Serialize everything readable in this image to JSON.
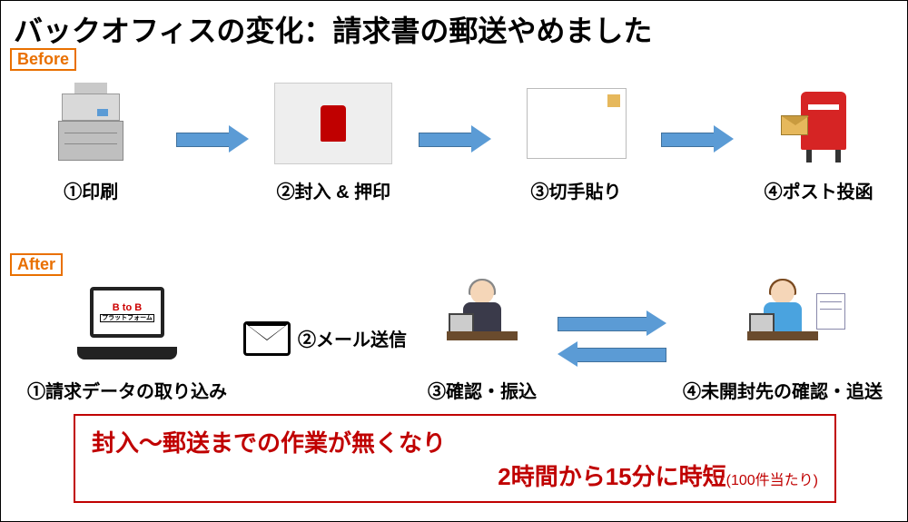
{
  "title": "バックオフィスの変化：請求書の郵送やめました",
  "colors": {
    "accent_orange": "#e97000",
    "arrow_fill": "#5b9bd5",
    "arrow_border": "#41719c",
    "result_red": "#c00000",
    "background": "#ffffff"
  },
  "before": {
    "label": "Before",
    "steps": [
      {
        "caption": "①印刷",
        "icon": "printer"
      },
      {
        "caption": "②封入 & 押印",
        "icon": "stamp-photo"
      },
      {
        "caption": "③切手貼り",
        "icon": "stamp-doc"
      },
      {
        "caption": "④ポスト投函",
        "icon": "postbox"
      }
    ]
  },
  "after": {
    "label": "After",
    "steps": [
      {
        "caption": "①請求データの取り込み",
        "icon": "laptop",
        "badge_top": "B to B",
        "badge_bottom": "プラットフォーム"
      },
      {
        "caption": "②メール送信",
        "icon": "mail"
      },
      {
        "caption": "③確認・振込",
        "icon": "person-desk"
      },
      {
        "caption": "④未開封先の確認・追送",
        "icon": "person-desk-sheet"
      }
    ]
  },
  "result": {
    "line1": "封入～郵送までの作業が無くなり",
    "line2": "2時間から15分に時短",
    "note": "(100件当たり)"
  },
  "typography": {
    "title_fontsize": 32,
    "caption_fontsize": 20,
    "result_fontsize": 26,
    "note_fontsize": 16
  }
}
